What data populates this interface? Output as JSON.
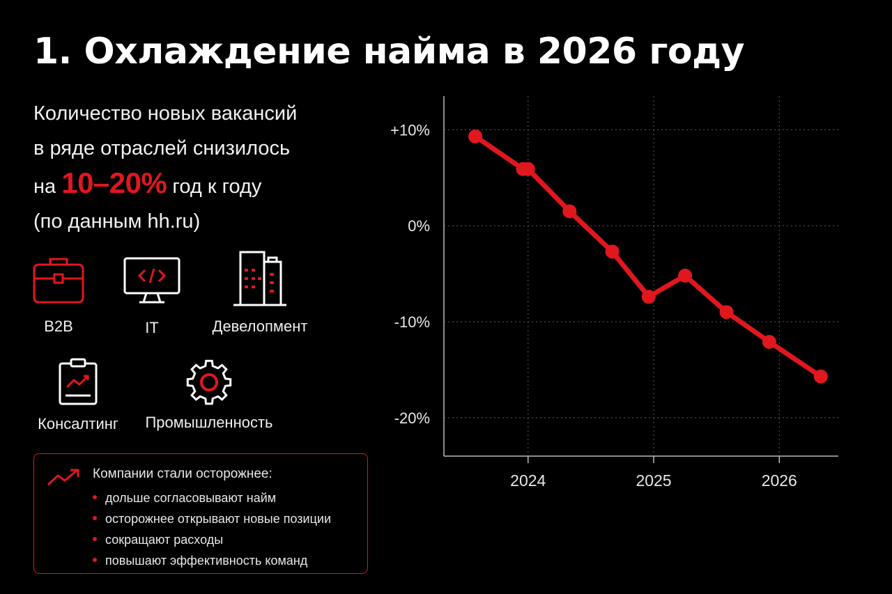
{
  "title": "1. Охлаждение найма в 2026 году",
  "lead": {
    "line1": "Количество новых вакансий",
    "line2": "в ряде отраслей снизилось",
    "line3_prefix": "на",
    "highlight": "10–20%",
    "line3_suffix": "год к году",
    "line4": "(по данным hh.ru)"
  },
  "industries": [
    {
      "label": "B2B",
      "icon": "briefcase-icon"
    },
    {
      "label": "IT",
      "icon": "monitor-code-icon"
    },
    {
      "label": "Девелопмент",
      "icon": "buildings-icon"
    },
    {
      "label": "Консалтинг",
      "icon": "clipboard-chart-icon"
    },
    {
      "label": "Промышленность",
      "icon": "gear-icon"
    }
  ],
  "infobox": {
    "icon": "trend-arrow-icon",
    "heading": "Компании стали осторожнее:",
    "items": [
      "дольше согласовывают найм",
      "осторожнее открывают новые позиции",
      "сокращают расходы",
      "повышают эффективность команд"
    ]
  },
  "colors": {
    "accent": "#e1171e",
    "background": "#000000",
    "text": "#ffffff"
  },
  "chart_data": {
    "type": "line",
    "title": "",
    "xlabel": "",
    "ylabel": "",
    "x_ticks": [
      "2024",
      "2025",
      "2026"
    ],
    "y_ticks": [
      "+10%",
      "0%",
      "-10%",
      "-20%"
    ],
    "y_tick_values": [
      10,
      0,
      -10,
      -20
    ],
    "ylim": [
      -24,
      13.5
    ],
    "xlim": [
      2023.33,
      2026.47
    ],
    "grid": true,
    "series": [
      {
        "color": "#e1171e",
        "x": [
          2023.58,
          2023.96,
          2024.0,
          2024.33,
          2024.67,
          2024.96,
          2025.25,
          2025.58,
          2025.92,
          2026.33
        ],
        "y": [
          9.3,
          5.9,
          5.9,
          1.5,
          -2.7,
          -7.4,
          -5.2,
          -9.0,
          -12.1,
          -15.7
        ]
      }
    ]
  }
}
